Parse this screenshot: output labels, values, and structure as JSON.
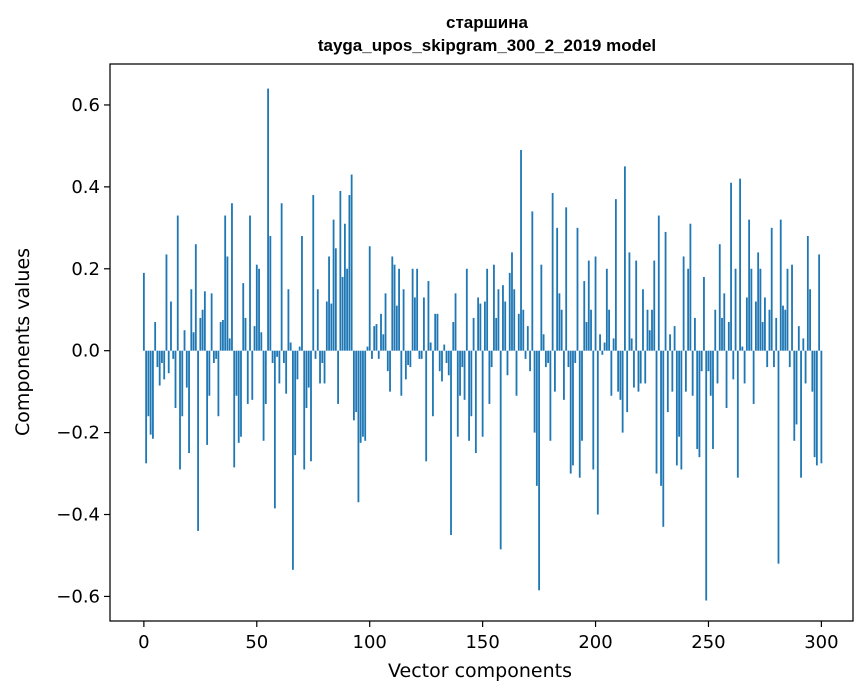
{
  "chart_data": {
    "type": "bar",
    "title_lines": [
      "старшина",
      "tayga_upos_skipgram_300_2_2019 model"
    ],
    "xlabel": "Vector components",
    "ylabel": "Components values",
    "xlim": [
      -15,
      314
    ],
    "ylim": [
      -0.66,
      0.7
    ],
    "xticks": [
      0,
      50,
      100,
      150,
      200,
      250,
      300
    ],
    "xtick_labels": [
      "0",
      "50",
      "100",
      "150",
      "200",
      "250",
      "300"
    ],
    "yticks": [
      -0.6,
      -0.4,
      -0.2,
      0.0,
      0.2,
      0.4,
      0.6
    ],
    "ytick_labels": [
      "−0.6",
      "−0.4",
      "−0.2",
      "0.0",
      "0.2",
      "0.4",
      "0.6"
    ],
    "grid": false,
    "bar_color": "#1f77b4",
    "x_start": 0,
    "values": [
      0.19,
      -0.275,
      -0.16,
      -0.205,
      -0.215,
      0.07,
      -0.04,
      -0.085,
      -0.03,
      -0.07,
      0.235,
      -0.055,
      0.12,
      -0.02,
      -0.14,
      0.33,
      -0.29,
      -0.16,
      0.05,
      -0.09,
      -0.25,
      0.15,
      0.045,
      0.26,
      -0.44,
      0.08,
      0.1,
      0.145,
      -0.23,
      -0.11,
      0.14,
      -0.03,
      -0.02,
      -0.16,
      0.07,
      0.075,
      0.33,
      0.23,
      0.03,
      0.36,
      -0.285,
      -0.11,
      -0.225,
      -0.21,
      0.165,
      0.08,
      -0.13,
      0.33,
      -0.12,
      0.06,
      0.21,
      0.2,
      0.045,
      -0.22,
      -0.13,
      0.64,
      0.28,
      -0.03,
      -0.385,
      -0.015,
      -0.08,
      0.36,
      -0.03,
      -0.105,
      0.15,
      0.02,
      -0.535,
      -0.255,
      -0.07,
      0.01,
      0.28,
      -0.29,
      -0.14,
      -0.09,
      -0.27,
      0.38,
      -0.02,
      0.15,
      -0.08,
      -0.03,
      -0.08,
      0.12,
      0.23,
      0.115,
      0.32,
      0.25,
      -0.13,
      0.39,
      0.18,
      0.31,
      0.2,
      0.38,
      0.43,
      -0.17,
      -0.15,
      -0.37,
      -0.225,
      -0.21,
      -0.22,
      0.01,
      0.255,
      -0.02,
      0.06,
      0.065,
      -0.02,
      0.09,
      0.04,
      0.14,
      -0.05,
      -0.1,
      0.23,
      0.21,
      0.11,
      0.2,
      -0.11,
      0.15,
      -0.07,
      -0.035,
      -0.04,
      0.2,
      0.13,
      0.2,
      -0.02,
      -0.02,
      0.13,
      -0.27,
      0.17,
      0.02,
      -0.16,
      0.09,
      0.09,
      -0.05,
      -0.075,
      0.015,
      -0.03,
      -0.06,
      -0.45,
      0.07,
      0.14,
      -0.21,
      -0.11,
      -0.04,
      -0.12,
      0.2,
      -0.22,
      -0.16,
      0.08,
      -0.25,
      0.13,
      0.115,
      -0.21,
      0.12,
      0.2,
      -0.13,
      -0.04,
      0.21,
      0.08,
      0.15,
      -0.485,
      0.16,
      0.12,
      -0.06,
      0.19,
      0.24,
      0.15,
      -0.11,
      0.09,
      0.49,
      0.1,
      -0.02,
      0.06,
      -0.05,
      0.34,
      -0.2,
      -0.33,
      -0.585,
      0.21,
      0.04,
      -0.04,
      -0.03,
      -0.22,
      0.385,
      -0.1,
      0.3,
      0.14,
      0.1,
      -0.12,
      0.35,
      -0.04,
      -0.3,
      -0.28,
      -0.03,
      0.3,
      -0.31,
      -0.22,
      0.17,
      0.07,
      0.22,
      0.1,
      -0.29,
      0.23,
      -0.4,
      0.04,
      -0.01,
      0.02,
      0.2,
      0.1,
      -0.11,
      0.03,
      0.37,
      -0.1,
      -0.12,
      -0.2,
      0.45,
      -0.15,
      0.24,
      0.03,
      -0.09,
      0.22,
      -0.1,
      -0.08,
      0.15,
      -0.08,
      0.1,
      0.05,
      0.1,
      0.22,
      -0.3,
      0.33,
      -0.33,
      -0.43,
      0.29,
      -0.15,
      0.04,
      -0.1,
      0.06,
      -0.28,
      -0.21,
      -0.29,
      0.23,
      -0.1,
      0.2,
      0.31,
      -0.11,
      0.08,
      -0.24,
      -0.26,
      -0.05,
      0.18,
      -0.61,
      -0.05,
      -0.11,
      -0.24,
      0.1,
      -0.08,
      0.26,
      0.08,
      0.14,
      -0.14,
      0.07,
      0.41,
      -0.07,
      0.2,
      -0.31,
      0.42,
      0.01,
      -0.08,
      0.13,
      0.32,
      0.2,
      -0.13,
      0.12,
      0.24,
      0.2,
      0.07,
      0.13,
      -0.04,
      0.1,
      0.3,
      -0.04,
      0.08,
      -0.52,
      0.32,
      0.11,
      0.1,
      0.2,
      -0.04,
      0.21,
      -0.22,
      -0.18,
      0.06,
      -0.31,
      0.03,
      -0.08,
      0.28,
      0.15,
      -0.1,
      -0.26,
      -0.28,
      0.235,
      -0.275
    ]
  }
}
